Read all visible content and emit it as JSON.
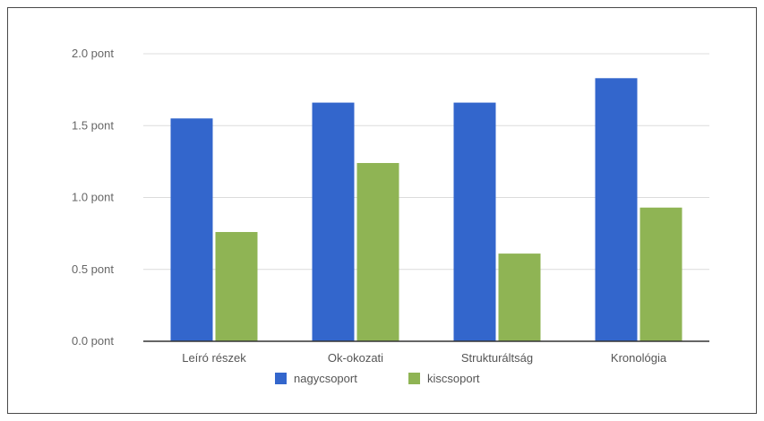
{
  "chart_data": {
    "type": "bar",
    "categories": [
      "Leíró részek",
      "Ok-okozati",
      "Strukturáltság",
      "Kronológia"
    ],
    "series": [
      {
        "name": "nagycsoport",
        "values": [
          1.55,
          1.66,
          1.66,
          1.83
        ],
        "color": "#3366cc"
      },
      {
        "name": "kiscsoport",
        "values": [
          0.76,
          1.24,
          0.61,
          0.93
        ],
        "color": "#8fb454"
      }
    ],
    "y_ticks": [
      "0.0  pont",
      "0.5  pont",
      "1.0  pont",
      "1.5  pont",
      "2.0  pont"
    ],
    "y_tick_values": [
      0,
      0.5,
      1.0,
      1.5,
      2.0
    ],
    "ylim": [
      0,
      2.0
    ],
    "grid": true,
    "legend_position": "bottom"
  }
}
